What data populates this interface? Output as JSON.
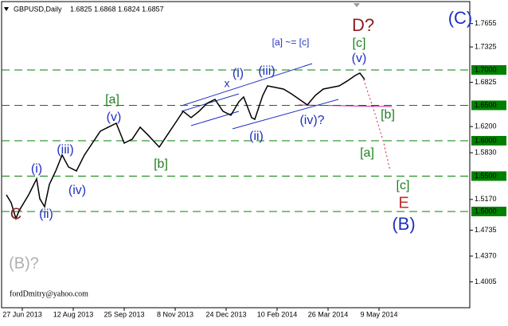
{
  "chart_data": {
    "type": "line",
    "title": "GBPUSD,Daily",
    "subtitle": "1.6825 1.6868 1.6824 1.6857",
    "watermark": "fordDmitry@yahoo.com",
    "x": [
      -10,
      -7,
      -4,
      -2,
      4,
      9,
      11,
      14,
      17,
      21,
      25,
      29,
      34,
      39,
      44,
      49,
      54,
      59,
      64,
      69,
      74,
      79,
      86,
      91,
      96,
      101,
      106,
      111,
      116,
      121,
      126,
      131,
      136,
      139,
      144,
      146,
      151,
      154,
      159,
      164,
      169,
      174,
      179,
      184,
      189,
      194,
      199,
      204,
      209,
      212,
      215
    ],
    "series": [
      {
        "color": "#000000",
        "values": [
          1.5236,
          1.5124,
          1.4899,
          1.5011,
          1.5236,
          1.5461,
          1.518,
          1.5067,
          1.5382,
          1.5573,
          1.5798,
          1.5629,
          1.5573,
          1.5798,
          1.5966,
          1.6135,
          1.6191,
          1.6247,
          1.5966,
          1.6022,
          1.6191,
          1.6079,
          1.591,
          1.6079,
          1.6247,
          1.6416,
          1.6326,
          1.6416,
          1.6528,
          1.6584,
          1.6416,
          1.636,
          1.6551,
          1.6618,
          1.6326,
          1.6303,
          1.664,
          1.6775,
          1.6753,
          1.673,
          1.6663,
          1.6584,
          1.6506,
          1.664,
          1.673,
          1.6753,
          1.6775,
          1.6843,
          1.6921,
          1.6955,
          1.6865
        ]
      }
    ],
    "xlim": [
      -14,
      281
    ],
    "xticks": [
      {
        "value": 0,
        "label": "27 Jun 2013"
      },
      {
        "value": 32,
        "label": "12 Aug 2013"
      },
      {
        "value": 64,
        "label": "25 Sep 2013"
      },
      {
        "value": 96,
        "label": "8 Nov 2013"
      },
      {
        "value": 128,
        "label": "24 Dec 2013"
      },
      {
        "value": 160,
        "label": "10 Feb 2014"
      },
      {
        "value": 192,
        "label": "26 Mar 2014"
      },
      {
        "value": 224,
        "label": "9 May 2014"
      }
    ],
    "ylim": [
      1.364,
      1.7966
    ],
    "yticks": [
      {
        "value": 1.7655,
        "label": "1.7655"
      },
      {
        "value": 1.7325,
        "label": "1.7325"
      },
      {
        "value": 1.6825,
        "label": "1.6825"
      },
      {
        "value": 1.62,
        "label": "1.6200"
      },
      {
        "value": 1.583,
        "label": "1.5830"
      },
      {
        "value": 1.517,
        "label": "1.5170"
      },
      {
        "value": 1.4735,
        "label": "1.4735"
      },
      {
        "value": 1.437,
        "label": "1.4370"
      },
      {
        "value": 1.4005,
        "label": "1.4005"
      }
    ],
    "levels": [
      {
        "value": 1.7,
        "label": "1.7000"
      },
      {
        "value": 1.65,
        "label": "1.6500"
      },
      {
        "value": 1.6,
        "label": "1.6000"
      },
      {
        "value": 1.55,
        "label": "1.5500"
      },
      {
        "value": 1.5,
        "label": "1.5000"
      }
    ],
    "level_color": "#008000",
    "annotations": [
      {
        "text": "C",
        "color": "#8b2020"
      },
      {
        "text": "(B)?",
        "color": "#b0b0b0"
      },
      {
        "text": "(i)",
        "color": "#2030c0"
      },
      {
        "text": "(ii)",
        "color": "#2030c0"
      },
      {
        "text": "(iii)",
        "color": "#2030c0"
      },
      {
        "text": "(iv)",
        "color": "#2030c0"
      },
      {
        "text": "[a]",
        "color": "#208020"
      },
      {
        "text": "(v)",
        "color": "#2030c0"
      },
      {
        "text": "[b]",
        "color": "#208020"
      },
      {
        "text": "x",
        "color": "#2030c0"
      },
      {
        "text": "(i)",
        "color": "#2030c0"
      },
      {
        "text": "(iii)",
        "color": "#2030c0"
      },
      {
        "text": "(ii)",
        "color": "#2030c0"
      },
      {
        "text": "(iv)?",
        "color": "#2030c0"
      },
      {
        "text": "[a] ~= [c]",
        "color": "#2030c0"
      },
      {
        "text": "D?",
        "color": "#8b2020"
      },
      {
        "text": "[c]",
        "color": "#208020"
      },
      {
        "text": "(v)",
        "color": "#2030c0"
      },
      {
        "text": "[b]",
        "color": "#208020"
      },
      {
        "text": "[a]",
        "color": "#208020"
      },
      {
        "text": "[c]",
        "color": "#208020"
      },
      {
        "text": "E",
        "color": "#c03030"
      },
      {
        "text": "(B)",
        "color": "#2030c0"
      },
      {
        "text": "(C)",
        "color": "#2030c0"
      }
    ]
  }
}
